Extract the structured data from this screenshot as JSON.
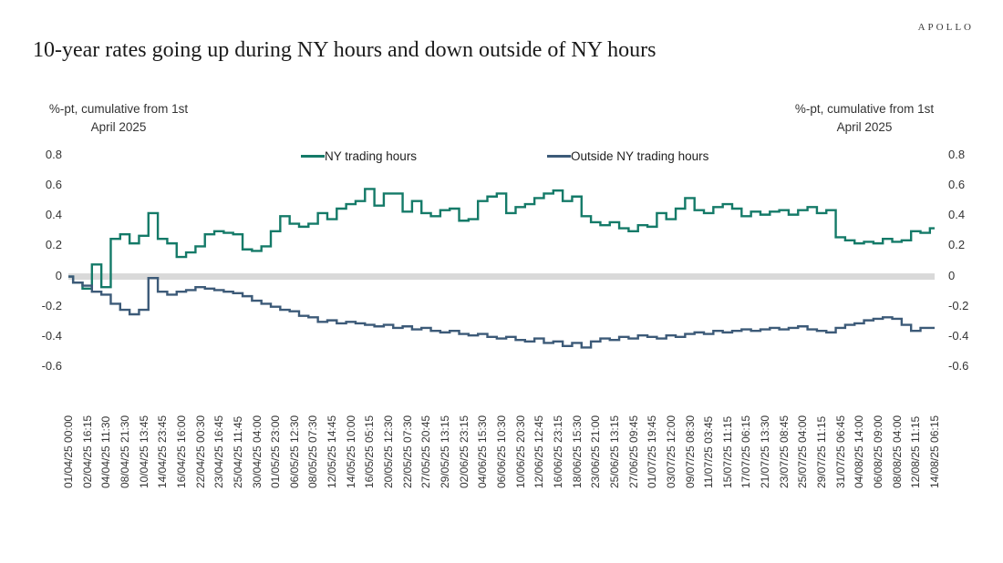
{
  "logo": "APOLLO",
  "title": "10-year rates going up during NY hours and down outside of NY hours",
  "chart_data": {
    "type": "line",
    "title": "10-year rates going up during NY hours and down outside of NY hours",
    "unit_label": {
      "line1": "%-pt, cumulative from 1st",
      "line2": "April 2025"
    },
    "ylim": [
      -0.6,
      0.8
    ],
    "ytick_labels": [
      "0.8",
      "0.6",
      "0.4",
      "0.2",
      "0",
      "-0.2",
      "-0.4",
      "-0.6"
    ],
    "grid": "off",
    "legend_position": "top-inside",
    "zero_band_color": "#d9d9d9",
    "samples_per_tick_interval": 2,
    "x_tick_labels": [
      "01/04/25 00:00",
      "02/04/25 16:15",
      "04/04/25 11:30",
      "08/04/25 21:30",
      "10/04/25 13:45",
      "14/04/25 23:45",
      "16/04/25 16:00",
      "22/04/25 00:30",
      "23/04/25 16:45",
      "25/04/25 11:45",
      "30/04/25 04:00",
      "01/05/25 23:00",
      "06/05/25 12:30",
      "08/05/25 07:30",
      "12/05/25 14:45",
      "14/05/25 10:00",
      "16/05/25 05:15",
      "20/05/25 12:30",
      "22/05/25 07:30",
      "27/05/25 20:45",
      "29/05/25 13:15",
      "02/06/25 23:15",
      "04/06/25 15:30",
      "06/06/25 10:30",
      "10/06/25 20:30",
      "12/06/25 12:45",
      "16/06/25 23:15",
      "18/06/25 15:30",
      "23/06/25 21:00",
      "25/06/25 13:15",
      "27/06/25 09:45",
      "01/07/25 19:45",
      "03/07/25 12:00",
      "09/07/25 08:30",
      "11/07/25 03:45",
      "15/07/25 11:15",
      "17/07/25 06:15",
      "21/07/25 13:30",
      "23/07/25 08:45",
      "25/07/25 04:00",
      "29/07/25 11:15",
      "31/07/25 06:45",
      "04/08/25 14:00",
      "06/08/25 09:00",
      "08/08/25 04:00",
      "12/08/25 11:15",
      "14/08/25 06:15"
    ],
    "series": [
      {
        "name": "NY trading hours",
        "color": "#147a68",
        "values": [
          0.0,
          -0.04,
          -0.08,
          0.08,
          -0.07,
          0.25,
          0.28,
          0.22,
          0.27,
          0.42,
          0.25,
          0.22,
          0.13,
          0.16,
          0.2,
          0.28,
          0.3,
          0.29,
          0.28,
          0.18,
          0.17,
          0.2,
          0.3,
          0.4,
          0.35,
          0.33,
          0.35,
          0.42,
          0.38,
          0.45,
          0.48,
          0.5,
          0.58,
          0.47,
          0.55,
          0.55,
          0.43,
          0.5,
          0.42,
          0.4,
          0.44,
          0.45,
          0.37,
          0.38,
          0.5,
          0.53,
          0.55,
          0.42,
          0.46,
          0.48,
          0.52,
          0.55,
          0.57,
          0.5,
          0.53,
          0.4,
          0.36,
          0.34,
          0.36,
          0.32,
          0.3,
          0.34,
          0.33,
          0.42,
          0.38,
          0.45,
          0.52,
          0.44,
          0.42,
          0.46,
          0.48,
          0.45,
          0.4,
          0.43,
          0.41,
          0.43,
          0.44,
          0.41,
          0.44,
          0.46,
          0.42,
          0.44,
          0.26,
          0.24,
          0.22,
          0.23,
          0.22,
          0.25,
          0.23,
          0.24,
          0.3,
          0.29,
          0.32
        ]
      },
      {
        "name": "Outside NY trading hours",
        "color": "#3c5a78",
        "values": [
          0.0,
          -0.04,
          -0.06,
          -0.1,
          -0.12,
          -0.18,
          -0.22,
          -0.25,
          -0.22,
          -0.01,
          -0.1,
          -0.12,
          -0.1,
          -0.09,
          -0.07,
          -0.08,
          -0.09,
          -0.1,
          -0.11,
          -0.13,
          -0.16,
          -0.18,
          -0.2,
          -0.22,
          -0.23,
          -0.26,
          -0.27,
          -0.3,
          -0.29,
          -0.31,
          -0.3,
          -0.31,
          -0.32,
          -0.33,
          -0.32,
          -0.34,
          -0.33,
          -0.35,
          -0.34,
          -0.36,
          -0.37,
          -0.36,
          -0.38,
          -0.39,
          -0.38,
          -0.4,
          -0.41,
          -0.4,
          -0.42,
          -0.43,
          -0.41,
          -0.44,
          -0.43,
          -0.46,
          -0.44,
          -0.47,
          -0.43,
          -0.41,
          -0.42,
          -0.4,
          -0.41,
          -0.39,
          -0.4,
          -0.41,
          -0.39,
          -0.4,
          -0.38,
          -0.37,
          -0.38,
          -0.36,
          -0.37,
          -0.36,
          -0.35,
          -0.36,
          -0.35,
          -0.34,
          -0.35,
          -0.34,
          -0.33,
          -0.35,
          -0.36,
          -0.37,
          -0.34,
          -0.32,
          -0.31,
          -0.29,
          -0.28,
          -0.27,
          -0.28,
          -0.32,
          -0.36,
          -0.34,
          -0.34
        ]
      }
    ]
  }
}
